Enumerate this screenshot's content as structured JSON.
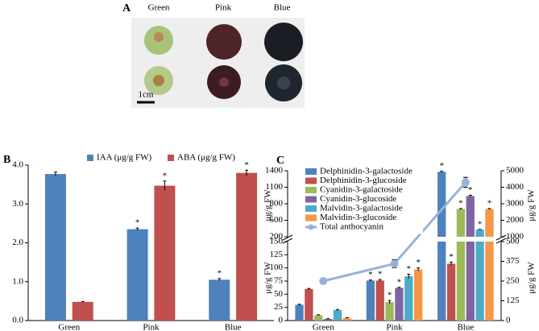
{
  "panel_a": {
    "label": "A",
    "columns": [
      "Green",
      "Pink",
      "Blue"
    ],
    "scale_bar": "1cm"
  },
  "chart_data": [
    {
      "type": "bar",
      "label": "B",
      "categories": [
        "Green",
        "Pink",
        "Blue"
      ],
      "series": [
        {
          "name": "IAA (μg/g FW)",
          "color": "#4f81bd",
          "values": [
            3.77,
            2.35,
            1.05
          ],
          "errors": [
            0.05,
            0.03,
            0.03
          ],
          "sig": [
            null,
            "*",
            "*"
          ]
        },
        {
          "name": "ABA (μg/g FW)",
          "color": "#c0504d",
          "values": [
            0.48,
            3.47,
            3.8
          ],
          "errors": [
            0.01,
            0.12,
            0.07
          ],
          "sig": [
            null,
            "*",
            "*"
          ]
        }
      ],
      "ylim": [
        0,
        4
      ],
      "yticks": [
        {
          "value": 0,
          "label": "0.0"
        },
        {
          "value": 1,
          "label": "1.0"
        },
        {
          "value": 2,
          "label": "2.0"
        },
        {
          "value": 3,
          "label": "3.0"
        },
        {
          "value": 4,
          "label": "4.0"
        }
      ],
      "legend": "top"
    },
    {
      "type": "bar",
      "label": "C",
      "categories": [
        "Green",
        "Pink",
        "Blue"
      ],
      "ylabel": "μg/g FW",
      "y2label": "μg/g FW",
      "series": [
        {
          "name": "Delphinidin-3-galactoside",
          "color": "#4f81bd",
          "values": [
            30,
            76,
            1380
          ],
          "errors": [
            1,
            1,
            10
          ],
          "sig": [
            null,
            "*",
            "*"
          ]
        },
        {
          "name": "Delphinidin-3-glucoside",
          "color": "#c0504d",
          "values": [
            60,
            76,
            108
          ],
          "errors": [
            1,
            2,
            3
          ],
          "sig": [
            null,
            "*",
            "*"
          ]
        },
        {
          "name": "Cyanidin-3-galactoside",
          "color": "#9bbb59",
          "values": [
            10,
            35,
            705
          ],
          "errors": [
            1,
            3,
            8
          ],
          "sig": [
            null,
            "*",
            "*"
          ]
        },
        {
          "name": "Cyanidin-3-glucoside",
          "color": "#8064a2",
          "values": [
            3,
            62,
            940
          ],
          "errors": [
            0.5,
            1,
            15
          ],
          "sig": [
            null,
            "*",
            "*"
          ]
        },
        {
          "name": "Malvidin-3-galactoside",
          "color": "#4bacc6",
          "values": [
            20,
            84,
            330
          ],
          "errors": [
            1,
            4,
            5
          ],
          "sig": [
            null,
            "*",
            "*"
          ]
        },
        {
          "name": "Malvidin-3-glucoside",
          "color": "#f79646",
          "values": [
            5,
            97,
            705
          ],
          "errors": [
            0.5,
            3,
            8
          ],
          "sig": [
            null,
            "*",
            "*"
          ]
        },
        {
          "name": "Total anthocyanin",
          "color": "#95b3d7",
          "values": [
            250,
            360,
            4300
          ],
          "errors": [
            10,
            25,
            300
          ],
          "axis": "y2"
        }
      ],
      "ylim_lower": [
        0,
        150
      ],
      "ylim_upper": [
        200,
        1400
      ],
      "yticks_lower": [
        0,
        25,
        50,
        75,
        100,
        125,
        150
      ],
      "yticks_upper": [
        200,
        500,
        800,
        1100,
        1400
      ],
      "y2lim_lower": [
        0,
        500
      ],
      "y2lim_upper": [
        1000,
        5000
      ],
      "y2ticks_lower": [
        0,
        125,
        250,
        375,
        500
      ],
      "y2ticks_upper": [
        1000,
        2000,
        3000,
        4000,
        5000
      ],
      "legend": "upper left"
    }
  ]
}
